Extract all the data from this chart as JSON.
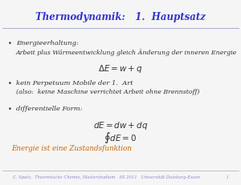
{
  "title": "Thermodynamik:   1.  Hauptsatz",
  "title_color": "#3333cc",
  "title_fontsize": 8.5,
  "bg_color": "#f5f5f5",
  "bullet_color": "#333333",
  "bullet_fontsize": 6.0,
  "math_fontsize": 7.5,
  "highlight_color": "#cc6600",
  "footer_color": "#8888cc",
  "footer_text": "C. Spotz,  Theoretische Chemie, Masterstudium   SS 2011   Universität Duisburg-Essen                    1",
  "footer_fontsize": 3.8,
  "line_color": "#aaaacc",
  "b1_main": "Energieerhaltung:",
  "b1_sub": "Arbeit plus Wärmeentwicklung gleich Änderung der inneren Energie",
  "b2_main": "kein Perpetuum Mobile der 1.  Art",
  "b2_sub": "(also:  keine Maschine verrichtet Arbeit ohne Brennstoff)",
  "b3_main": "differentielle Form:",
  "eq1": "$\\Delta E = w + q$",
  "eq2": "$dE = dw + dq$",
  "eq3": "$\\oint dE = 0$",
  "highlight_text": "Energie ist eine Zustandsfunktion"
}
